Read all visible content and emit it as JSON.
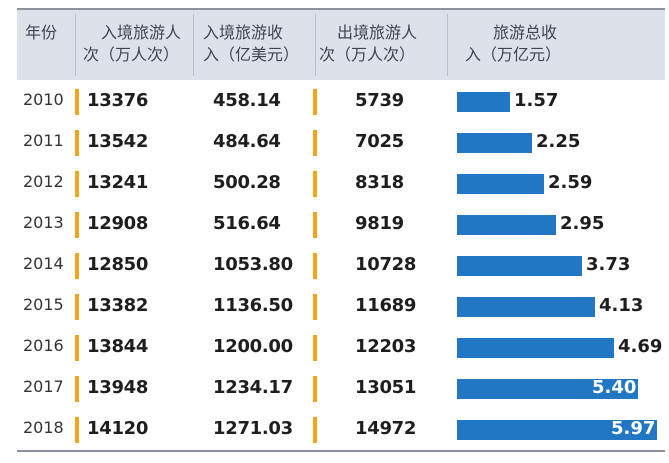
{
  "headers": {
    "year": "年份",
    "inbound_trips": [
      "入境旅游人",
      "次（万人次）"
    ],
    "inbound_revenue": [
      "入境旅游收",
      "入（亿美元）"
    ],
    "outbound_trips": [
      "出境旅游人",
      "次（万人次）"
    ],
    "total_revenue": [
      "旅游总收",
      "入（万亿元）"
    ]
  },
  "colors": {
    "bar": "#2277c5",
    "marker": "#f2a41c",
    "header_bg": "#dde2ea"
  },
  "chart_data": {
    "type": "table",
    "columns": [
      "年份",
      "入境旅游人次（万人次）",
      "入境旅游收入（亿美元）",
      "出境旅游人次（万人次）",
      "旅游总收入（万亿元）"
    ],
    "rows": [
      {
        "year": "2010",
        "inbound_trips": "13376",
        "inbound_revenue": "458.14",
        "outbound_trips": "5739",
        "total_revenue": "1.57"
      },
      {
        "year": "2011",
        "inbound_trips": "13542",
        "inbound_revenue": "484.64",
        "outbound_trips": "7025",
        "total_revenue": "2.25"
      },
      {
        "year": "2012",
        "inbound_trips": "13241",
        "inbound_revenue": "500.28",
        "outbound_trips": "8318",
        "total_revenue": "2.59"
      },
      {
        "year": "2013",
        "inbound_trips": "12908",
        "inbound_revenue": "516.64",
        "outbound_trips": "9819",
        "total_revenue": "2.95"
      },
      {
        "year": "2014",
        "inbound_trips": "12850",
        "inbound_revenue": "1053.80",
        "outbound_trips": "10728",
        "total_revenue": "3.73"
      },
      {
        "year": "2015",
        "inbound_trips": "13382",
        "inbound_revenue": "1136.50",
        "outbound_trips": "11689",
        "total_revenue": "4.13"
      },
      {
        "year": "2016",
        "inbound_trips": "13844",
        "inbound_revenue": "1200.00",
        "outbound_trips": "12203",
        "total_revenue": "4.69"
      },
      {
        "year": "2017",
        "inbound_trips": "13948",
        "inbound_revenue": "1234.17",
        "outbound_trips": "13051",
        "total_revenue": "5.40"
      },
      {
        "year": "2018",
        "inbound_trips": "14120",
        "inbound_revenue": "1271.03",
        "outbound_trips": "14972",
        "total_revenue": "5.97"
      }
    ],
    "bar_column": "total_revenue",
    "bar_max": 5.97
  }
}
